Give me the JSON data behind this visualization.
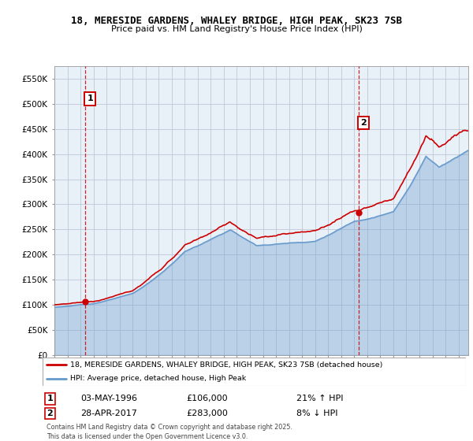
{
  "title_line1": "18, MERESIDE GARDENS, WHALEY BRIDGE, HIGH PEAK, SK23 7SB",
  "title_line2": "Price paid vs. HM Land Registry's House Price Index (HPI)",
  "ylim": [
    0,
    575000
  ],
  "yticks": [
    0,
    50000,
    100000,
    150000,
    200000,
    250000,
    300000,
    350000,
    400000,
    450000,
    500000,
    550000
  ],
  "ytick_labels": [
    "£0",
    "£50K",
    "£100K",
    "£150K",
    "£200K",
    "£250K",
    "£300K",
    "£350K",
    "£400K",
    "£450K",
    "£500K",
    "£550K"
  ],
  "xlim_start": 1994.0,
  "xlim_end": 2025.75,
  "sale1_x": 1996.35,
  "sale1_y": 106000,
  "sale1_label": "1",
  "sale1_date": "03-MAY-1996",
  "sale1_price": "£106,000",
  "sale1_hpi": "21% ↑ HPI",
  "sale2_x": 2017.32,
  "sale2_y": 283000,
  "sale2_label": "2",
  "sale2_date": "28-APR-2017",
  "sale2_price": "£283,000",
  "sale2_hpi": "8% ↓ HPI",
  "line_color_red": "#cc0000",
  "line_color_blue": "#6699cc",
  "fill_color_blue": "#ddeeff",
  "vline_color": "#cc0000",
  "marker_box_color": "#cc0000",
  "background_color": "#ffffff",
  "chart_bg_color": "#e8f0f8",
  "grid_color": "#c0c8d8",
  "legend_label_red": "18, MERESIDE GARDENS, WHALEY BRIDGE, HIGH PEAK, SK23 7SB (detached house)",
  "legend_label_blue": "HPI: Average price, detached house, High Peak",
  "footer": "Contains HM Land Registry data © Crown copyright and database right 2025.\nThis data is licensed under the Open Government Licence v3.0."
}
